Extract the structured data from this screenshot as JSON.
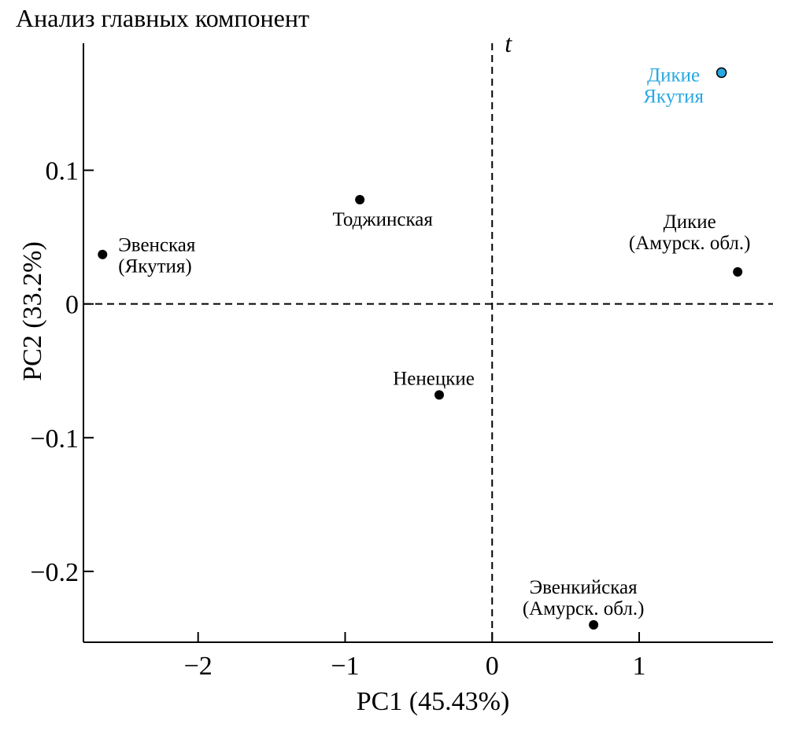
{
  "chart_data": {
    "type": "scatter",
    "title": "Анализ главных компонент",
    "xlabel": "PC1 (45.43%)",
    "ylabel": "PC2 (33.2%)",
    "xlim": [
      -2.78,
      1.91
    ],
    "ylim": [
      -0.253,
      0.195
    ],
    "xticks": [
      {
        "value": -2,
        "label": "−2"
      },
      {
        "value": -1,
        "label": "−1"
      },
      {
        "value": 0,
        "label": "0"
      },
      {
        "value": 1,
        "label": "1"
      }
    ],
    "yticks": [
      {
        "value": 0.1,
        "label": "0.1"
      },
      {
        "value": 0,
        "label": "0"
      },
      {
        "value": -0.1,
        "label": "−0.1"
      },
      {
        "value": -0.2,
        "label": "−0.2"
      }
    ],
    "reference_lines": {
      "x": 0,
      "y": 0,
      "style": "dashed",
      "vertical_label": "t"
    },
    "grid": false,
    "points": [
      {
        "x": -2.65,
        "y": 0.037,
        "label": [
          "Эвенская",
          "(Якутия)"
        ],
        "color": "#000000",
        "label_pos": "right"
      },
      {
        "x": -0.9,
        "y": 0.078,
        "label": [
          "Тоджинская"
        ],
        "color": "#000000",
        "label_pos": "below"
      },
      {
        "x": -0.36,
        "y": -0.068,
        "label": [
          "Ненецкие"
        ],
        "color": "#000000",
        "label_pos": "above"
      },
      {
        "x": 0.69,
        "y": -0.24,
        "label": [
          "Эвенкийская",
          "(Амурск. обл.)"
        ],
        "color": "#000000",
        "label_pos": "above"
      },
      {
        "x": 1.67,
        "y": 0.024,
        "label": [
          "Дикие",
          "(Амурск. обл.)"
        ],
        "color": "#000000",
        "label_pos": "above-left"
      },
      {
        "x": 1.56,
        "y": 0.173,
        "label": [
          "Дикие",
          "Якутия"
        ],
        "color": "#29a8e0",
        "label_pos": "left"
      }
    ]
  }
}
